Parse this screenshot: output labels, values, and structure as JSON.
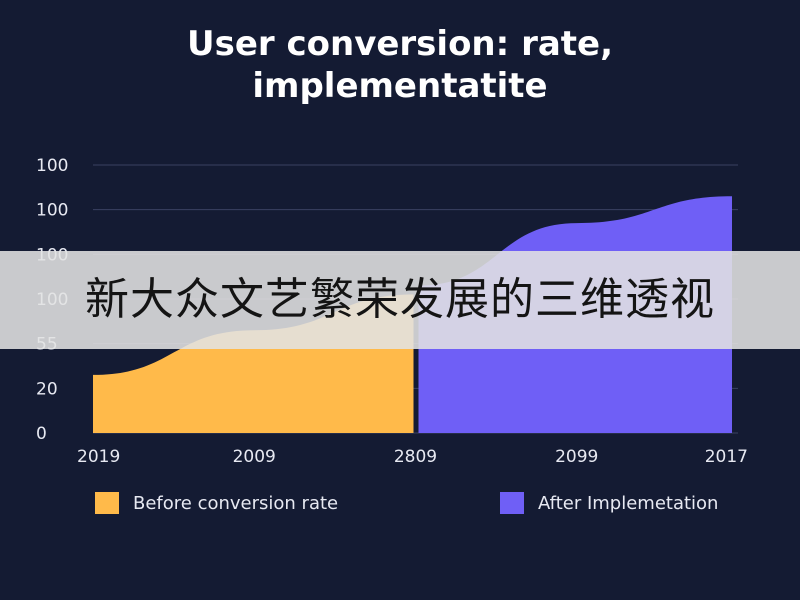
{
  "chart_data": {
    "type": "area",
    "title": "User conversion: rate,",
    "subtitle": "implementatite",
    "y_tick_labels": [
      "100",
      "100",
      "100",
      "100",
      "55",
      "20",
      "0"
    ],
    "x_tick_labels": [
      "2019",
      "2009",
      "2809",
      "2099",
      "2017"
    ],
    "grid": true,
    "legend_position": "bottom",
    "series": [
      {
        "name": "Before conversion rate",
        "color": "#ffba4a",
        "values": [
          {
            "x": 0,
            "y": 13
          },
          {
            "x": 1,
            "y": 23
          },
          {
            "x": 2,
            "y": 31
          }
        ]
      },
      {
        "name": "After Implemetation",
        "color": "#6f5ff6",
        "values": [
          {
            "x": 2,
            "y": 33
          },
          {
            "x": 3,
            "y": 47
          },
          {
            "x": 4,
            "y": 53
          }
        ]
      }
    ]
  },
  "banner": {
    "text": "新大众文艺繁荣发展的三维透视"
  }
}
